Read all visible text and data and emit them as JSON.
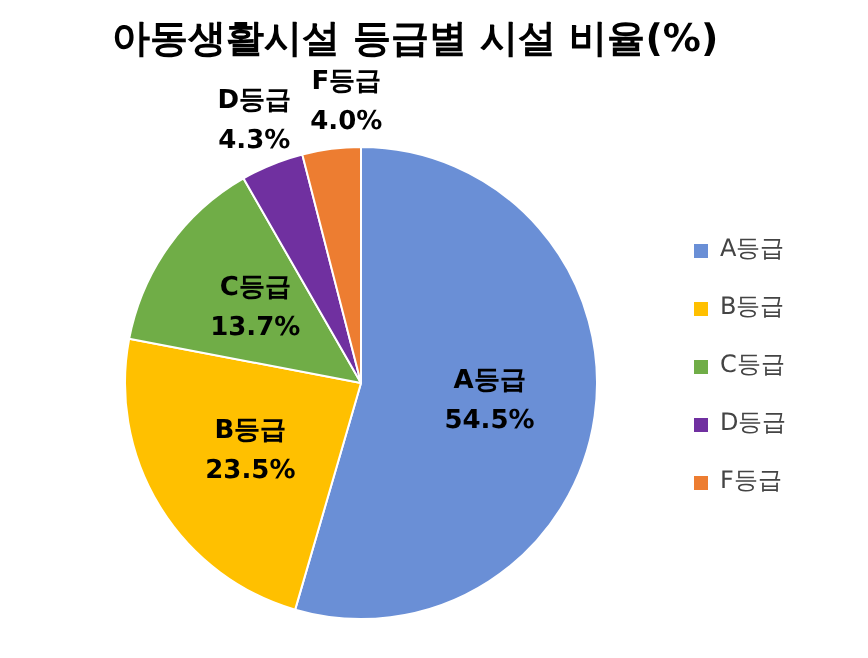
{
  "chart_data": {
    "type": "pie",
    "title": "아동생활시설 등급별 시설 비율(%)",
    "categories": [
      "A등급",
      "B등급",
      "C등급",
      "D등급",
      "F등급"
    ],
    "values": [
      54.5,
      23.5,
      13.7,
      4.3,
      4.0
    ],
    "value_labels": [
      "54.5%",
      "23.5%",
      "13.7%",
      "4.3%",
      "4.0%"
    ],
    "colors": [
      "#6a8fd6",
      "#ffc000",
      "#70ad47",
      "#7030a0",
      "#ed7d31"
    ],
    "legend": "right"
  }
}
